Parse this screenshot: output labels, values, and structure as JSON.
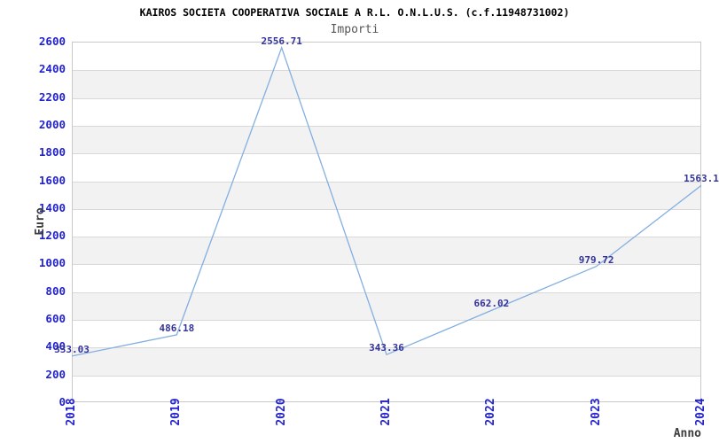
{
  "header": {
    "title": "KAIROS SOCIETA COOPERATIVA SOCIALE A R.L. O.N.L.U.S. (c.f.11948731002)",
    "subtitle": "Importi"
  },
  "chart_data": {
    "type": "line",
    "title": "KAIROS SOCIETA COOPERATIVA SOCIALE A R.L. O.N.L.U.S. (c.f.11948731002)",
    "subtitle": "Importi",
    "categories": [
      "2018",
      "2019",
      "2020",
      "2021",
      "2022",
      "2023",
      "2024"
    ],
    "values": [
      333.03,
      486.18,
      2556.71,
      343.36,
      662.02,
      979.72,
      1563.1
    ],
    "point_labels": [
      "333.03",
      "486.18",
      "2556.71",
      "343.36",
      "662.02",
      "979.72",
      "1563.1"
    ],
    "xlabel": "Anno",
    "ylabel": "Euro",
    "ylim": [
      0,
      2600
    ],
    "ytick_step": 200,
    "yticks": [
      0,
      200,
      400,
      600,
      800,
      1000,
      1200,
      1400,
      1600,
      1800,
      2000,
      2200,
      2400,
      2600
    ],
    "grid": "horizontal",
    "alternating_bands": true,
    "legend": "none",
    "x_tick_rotation_deg": 90
  },
  "colors": {
    "title": "#000000",
    "subtitle": "#555555",
    "tick_label": "#2222cc",
    "data_label": "#333399",
    "axis_title": "#3c3c3c",
    "line": "#83afe0",
    "band": "#f2f2f2",
    "gridline": "#d9d9d9",
    "plot_border": "#c9c9c9",
    "background": "#ffffff"
  }
}
